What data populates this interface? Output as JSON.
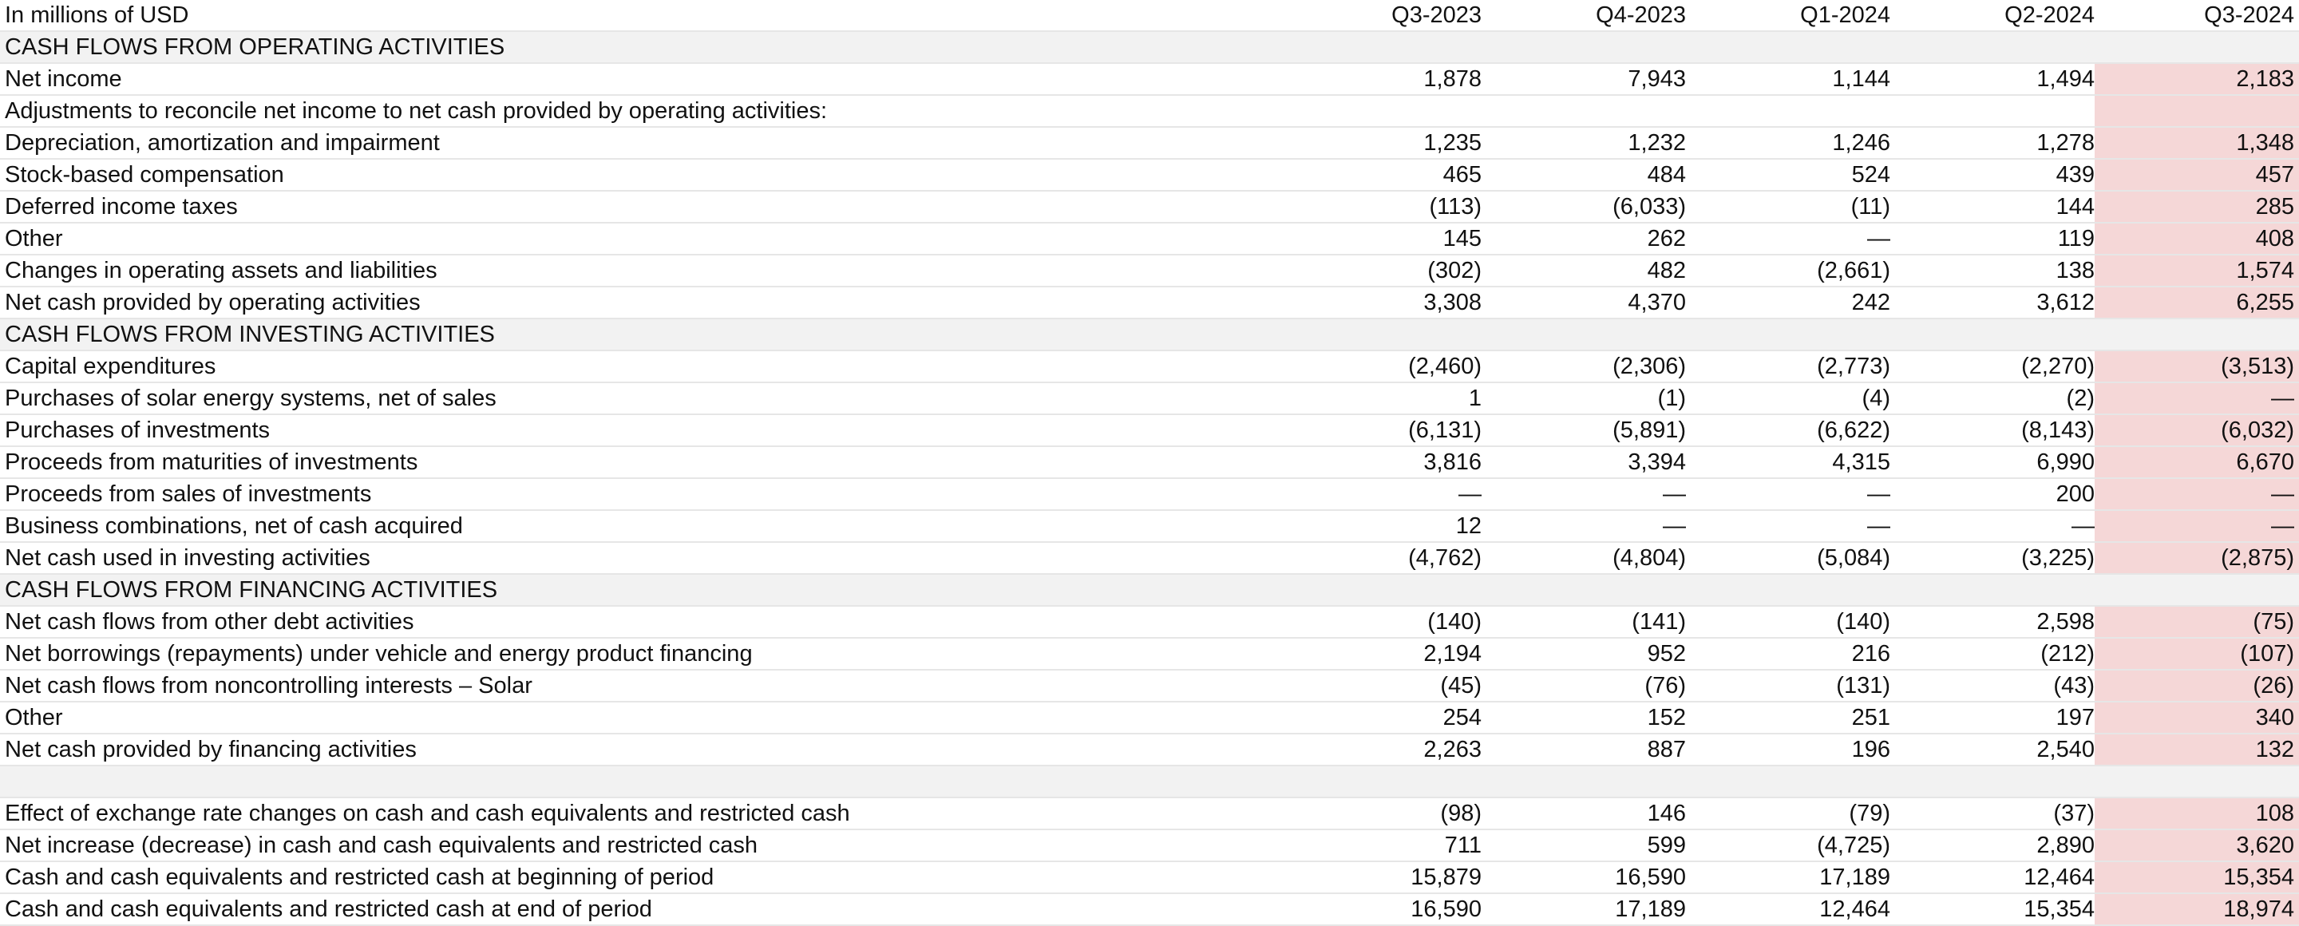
{
  "header": {
    "label": "In millions of USD",
    "periods": [
      "Q3-2023",
      "Q4-2023",
      "Q1-2024",
      "Q2-2024",
      "Q3-2024"
    ]
  },
  "colors": {
    "highlight": "#f5d7d7",
    "section_bg": "#f2f2f2"
  },
  "rows": [
    {
      "type": "section",
      "label": "CASH FLOWS FROM OPERATING ACTIVITIES"
    },
    {
      "type": "row",
      "label": "Net income",
      "values": [
        "1,878",
        "7,943",
        "1,144",
        "1,494",
        "2,183"
      ]
    },
    {
      "type": "row",
      "label": "Adjustments to reconcile net income to net cash provided by operating activities:",
      "values": [
        "",
        "",
        "",
        "",
        ""
      ]
    },
    {
      "type": "row",
      "label": "Depreciation, amortization and impairment",
      "values": [
        "1,235",
        "1,232",
        "1,246",
        "1,278",
        "1,348"
      ]
    },
    {
      "type": "row",
      "label": "Stock-based compensation",
      "values": [
        "465",
        "484",
        "524",
        "439",
        "457"
      ]
    },
    {
      "type": "row",
      "label": "Deferred income taxes",
      "values": [
        "(113)",
        "(6,033)",
        "(11)",
        "144",
        "285"
      ]
    },
    {
      "type": "row",
      "label": "Other",
      "values": [
        "145",
        "262",
        "—",
        "119",
        "408"
      ]
    },
    {
      "type": "row",
      "label": "Changes in operating assets and liabilities",
      "values": [
        "(302)",
        "482",
        "(2,661)",
        "138",
        "1,574"
      ]
    },
    {
      "type": "total",
      "label": "Net cash provided by operating activities",
      "values": [
        "3,308",
        "4,370",
        "242",
        "3,612",
        "6,255"
      ]
    },
    {
      "type": "section",
      "label": "CASH FLOWS FROM INVESTING ACTIVITIES"
    },
    {
      "type": "row",
      "label": "Capital expenditures",
      "values": [
        "(2,460)",
        "(2,306)",
        "(2,773)",
        "(2,270)",
        "(3,513)"
      ]
    },
    {
      "type": "row",
      "label": "Purchases of solar energy systems, net of sales",
      "values": [
        "1",
        "(1)",
        "(4)",
        "(2)",
        "—"
      ]
    },
    {
      "type": "row",
      "label": "Purchases of investments",
      "values": [
        "(6,131)",
        "(5,891)",
        "(6,622)",
        "(8,143)",
        "(6,032)"
      ]
    },
    {
      "type": "row",
      "label": "Proceeds from maturities of investments",
      "values": [
        "3,816",
        "3,394",
        "4,315",
        "6,990",
        "6,670"
      ]
    },
    {
      "type": "row",
      "label": "Proceeds from sales of investments",
      "values": [
        "—",
        "—",
        "—",
        "200",
        "—"
      ]
    },
    {
      "type": "row",
      "label": "Business combinations, net of cash acquired",
      "values": [
        "12",
        "—",
        "—",
        "—",
        "—"
      ]
    },
    {
      "type": "total",
      "label": "Net cash used in investing activities",
      "values": [
        "(4,762)",
        "(4,804)",
        "(5,084)",
        "(3,225)",
        "(2,875)"
      ]
    },
    {
      "type": "section",
      "label": "CASH FLOWS FROM FINANCING ACTIVITIES"
    },
    {
      "type": "row",
      "label": "Net cash flows from other debt activities",
      "values": [
        "(140)",
        "(141)",
        "(140)",
        "2,598",
        "(75)"
      ]
    },
    {
      "type": "row",
      "label": "Net borrowings (repayments) under vehicle and energy product financing",
      "values": [
        "2,194",
        "952",
        "216",
        "(212)",
        "(107)"
      ]
    },
    {
      "type": "row",
      "label": "Net cash flows from noncontrolling interests – Solar",
      "values": [
        "(45)",
        "(76)",
        "(131)",
        "(43)",
        "(26)"
      ]
    },
    {
      "type": "row",
      "label": "Other",
      "values": [
        "254",
        "152",
        "251",
        "197",
        "340"
      ]
    },
    {
      "type": "total",
      "label": "Net cash provided by financing activities",
      "values": [
        "2,263",
        "887",
        "196",
        "2,540",
        "132"
      ]
    },
    {
      "type": "spacer",
      "label": ""
    },
    {
      "type": "row",
      "label": "Effect of exchange rate changes on cash and cash equivalents and restricted cash",
      "values": [
        "(98)",
        "146",
        "(79)",
        "(37)",
        "108"
      ]
    },
    {
      "type": "row",
      "label": "Net increase (decrease) in cash and cash equivalents and restricted cash",
      "values": [
        "711",
        "599",
        "(4,725)",
        "2,890",
        "3,620"
      ]
    },
    {
      "type": "row",
      "label": "Cash and cash equivalents and restricted cash at beginning of period",
      "values": [
        "15,879",
        "16,590",
        "17,189",
        "12,464",
        "15,354"
      ]
    },
    {
      "type": "row",
      "label": "Cash and cash equivalents and restricted cash at end of period",
      "values": [
        "16,590",
        "17,189",
        "12,464",
        "15,354",
        "18,974"
      ]
    }
  ]
}
